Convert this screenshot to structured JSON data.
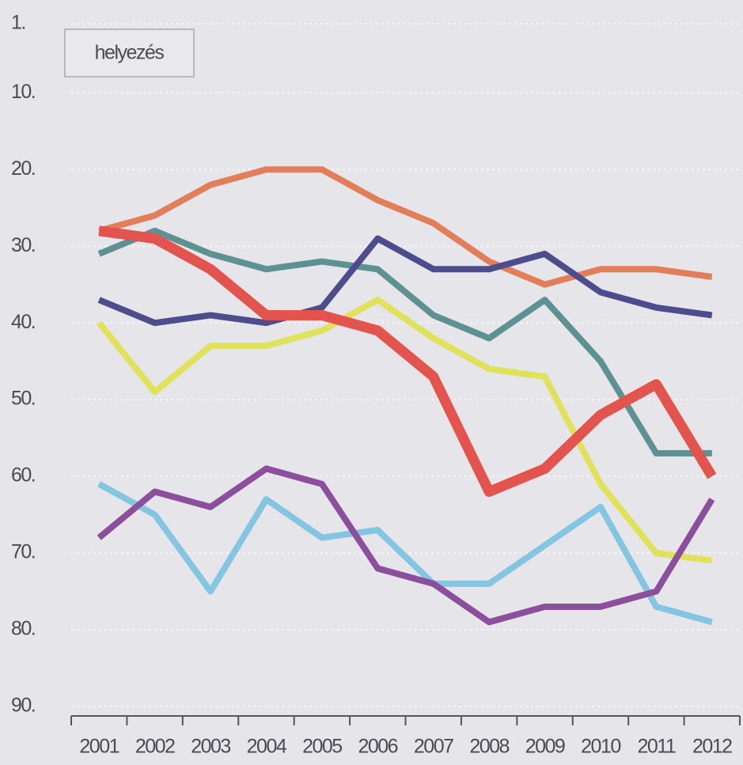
{
  "chart_data": {
    "type": "line",
    "y_label": "helyezés",
    "categories": [
      "2001",
      "2002",
      "2003",
      "2004",
      "2005",
      "2006",
      "2007",
      "2008",
      "2009",
      "2010",
      "2011",
      "2012"
    ],
    "ylim": [
      1,
      90
    ],
    "y_inverted": true,
    "yticks": [
      {
        "value": 1,
        "label": "1."
      },
      {
        "value": 10,
        "label": "10."
      },
      {
        "value": 20,
        "label": "20."
      },
      {
        "value": 30,
        "label": "30."
      },
      {
        "value": 40,
        "label": "40."
      },
      {
        "value": 50,
        "label": "50."
      },
      {
        "value": 60,
        "label": "60."
      },
      {
        "value": 70,
        "label": "70."
      },
      {
        "value": 80,
        "label": "80."
      },
      {
        "value": 90,
        "label": "90."
      }
    ],
    "grid": true,
    "series": [
      {
        "color": "#e27f5a",
        "width": 8,
        "values": [
          28,
          26,
          22,
          20,
          20,
          24,
          27,
          32,
          35,
          33,
          33,
          34
        ]
      },
      {
        "color": "#5e9191",
        "width": 8,
        "values": [
          31,
          28,
          31,
          33,
          32,
          33,
          39,
          42,
          37,
          45,
          57,
          57
        ]
      },
      {
        "color": "#4d4d8e",
        "width": 8,
        "values": [
          37,
          40,
          39,
          40,
          38,
          29,
          33,
          33,
          31,
          36,
          38,
          39
        ]
      },
      {
        "color": "#dfe25a",
        "width": 8,
        "values": [
          40,
          49,
          43,
          43,
          41,
          37,
          42,
          46,
          47,
          61,
          70,
          71
        ]
      },
      {
        "color": "#e3544f",
        "width": 13,
        "values": [
          28,
          29,
          33,
          39,
          39,
          41,
          47,
          62,
          59,
          52,
          48,
          60
        ]
      },
      {
        "color": "#84c6e2",
        "width": 8,
        "values": [
          61,
          65,
          75,
          63,
          68,
          67,
          74,
          74,
          69,
          64,
          77,
          79
        ]
      },
      {
        "color": "#8c4f9c",
        "width": 8,
        "values": [
          68,
          62,
          64,
          59,
          61,
          72,
          74,
          79,
          77,
          77,
          75,
          63
        ]
      }
    ]
  }
}
